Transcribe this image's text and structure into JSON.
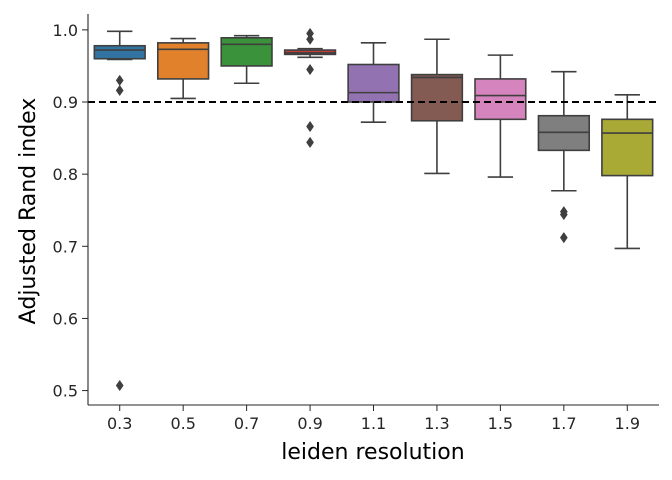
{
  "chart_data": {
    "type": "box",
    "xlabel": "leiden resolution",
    "ylabel": "Adjusted Rand index",
    "ylim": [
      0.48,
      1.022
    ],
    "yticks": [
      0.5,
      0.6,
      0.7,
      0.8,
      0.9,
      1.0
    ],
    "ytick_labels": [
      "0.5",
      "0.6",
      "0.7",
      "0.8",
      "0.9",
      "1.0"
    ],
    "reference_line": {
      "y": 0.9,
      "style": "dashed",
      "color": "#000000"
    },
    "categories": [
      "0.3",
      "0.5",
      "0.7",
      "0.9",
      "1.1",
      "1.3",
      "1.5",
      "1.7",
      "1.9"
    ],
    "boxes": [
      {
        "category": "0.3",
        "color": "#3274a1",
        "whisker_low": 0.959,
        "q1": 0.96,
        "median": 0.972,
        "q3": 0.978,
        "whisker_high": 0.998,
        "outliers": [
          0.93,
          0.916,
          0.507
        ]
      },
      {
        "category": "0.5",
        "color": "#e1812c",
        "whisker_low": 0.905,
        "q1": 0.932,
        "median": 0.973,
        "q3": 0.982,
        "whisker_high": 0.988,
        "outliers": []
      },
      {
        "category": "0.7",
        "color": "#3a923a",
        "whisker_low": 0.926,
        "q1": 0.95,
        "median": 0.98,
        "q3": 0.989,
        "whisker_high": 0.992,
        "outliers": []
      },
      {
        "category": "0.9",
        "color": "#c03d3e",
        "whisker_low": 0.962,
        "q1": 0.966,
        "median": 0.968,
        "q3": 0.972,
        "whisker_high": 0.974,
        "outliers": [
          0.995,
          0.987,
          0.945,
          0.866,
          0.844
        ]
      },
      {
        "category": "1.1",
        "color": "#9372b2",
        "whisker_low": 0.872,
        "q1": 0.9,
        "median": 0.913,
        "q3": 0.952,
        "whisker_high": 0.982,
        "outliers": []
      },
      {
        "category": "1.3",
        "color": "#845b53",
        "whisker_low": 0.801,
        "q1": 0.874,
        "median": 0.934,
        "q3": 0.938,
        "whisker_high": 0.987,
        "outliers": []
      },
      {
        "category": "1.5",
        "color": "#d684bd",
        "whisker_low": 0.796,
        "q1": 0.876,
        "median": 0.909,
        "q3": 0.932,
        "whisker_high": 0.965,
        "outliers": []
      },
      {
        "category": "1.7",
        "color": "#7f7f7f",
        "whisker_low": 0.777,
        "q1": 0.833,
        "median": 0.858,
        "q3": 0.881,
        "whisker_high": 0.942,
        "outliers": [
          0.748,
          0.744,
          0.712
        ]
      },
      {
        "category": "1.9",
        "color": "#a9aa35",
        "whisker_low": 0.697,
        "q1": 0.798,
        "median": 0.857,
        "q3": 0.876,
        "whisker_high": 0.91,
        "outliers": []
      }
    ],
    "grid": false,
    "legend": "none"
  }
}
